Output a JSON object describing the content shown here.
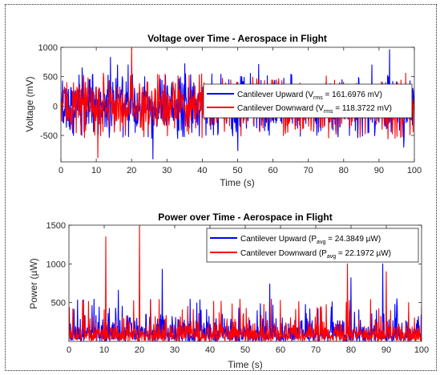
{
  "chart_data": [
    {
      "type": "line",
      "title": "Voltage over Time - Aerospace in Flight",
      "xlabel": "Time (s)",
      "ylabel": "Voltage (mV)",
      "xlim": [
        0,
        100
      ],
      "ylim": [
        -950,
        1000
      ],
      "xticks": [
        "0",
        "10",
        "20",
        "30",
        "40",
        "50",
        "60",
        "70",
        "80",
        "90",
        "100"
      ],
      "yticks": [
        "1000",
        "500",
        "0",
        "-500"
      ],
      "grid": false,
      "legend_position": "right",
      "series": [
        {
          "name": "Cantilever Upward",
          "legend_prefix": "Cantilever Upward (V",
          "legend_sub": "rms",
          "legend_suffix": " = 161.6976 mV)",
          "color": "#0000ff",
          "rms": 161.6976,
          "peaks": [
            [
              6,
              650
            ],
            [
              14,
              830
            ],
            [
              16,
              700
            ],
            [
              19,
              700
            ],
            [
              26,
              -900
            ],
            [
              35,
              720
            ],
            [
              50,
              -760
            ],
            [
              56,
              710
            ],
            [
              88,
              700
            ],
            [
              93,
              960
            ],
            [
              97,
              -700
            ]
          ]
        },
        {
          "name": "Cantilever Downward",
          "legend_prefix": "Cantilever Downward (V",
          "legend_sub": "rms",
          "legend_suffix": " = 118.3722 mV)",
          "color": "#ff0000",
          "rms": 118.3722,
          "peaks": [
            [
              10.5,
              -880
            ],
            [
              20,
              1000
            ],
            [
              12,
              560
            ]
          ]
        }
      ]
    },
    {
      "type": "line",
      "title": "Power over Time - Aerospace in Flight",
      "xlabel": "Time (s)",
      "ylabel": "Power (µW)",
      "xlim": [
        0,
        100
      ],
      "ylim": [
        0,
        1500
      ],
      "xticks": [
        "0",
        "10",
        "20",
        "30",
        "40",
        "50",
        "60",
        "70",
        "80",
        "90",
        "100"
      ],
      "yticks": [
        "1500",
        "1000",
        "500"
      ],
      "grid": false,
      "legend_position": "top-right",
      "series": [
        {
          "name": "Cantilever Upward",
          "legend_prefix": "Cantilever Upward (P",
          "legend_sub": "avg",
          "legend_suffix": " = 24.3849 µW)",
          "color": "#0000ff",
          "avg": 24.3849,
          "peaks": [
            [
              26.5,
              930
            ],
            [
              14,
              660
            ],
            [
              57,
              740
            ],
            [
              80,
              820
            ],
            [
              89,
              1000
            ],
            [
              93,
              550
            ]
          ]
        },
        {
          "name": "Cantilever Downward",
          "legend_prefix": "Cantilever Downward (P",
          "legend_sub": "avg",
          "legend_suffix": " = 22.1972 µW)",
          "color": "#ff0000",
          "avg": 22.1972,
          "peaks": [
            [
              10.5,
              1350
            ],
            [
              20,
              1490
            ],
            [
              79,
              1000
            ],
            [
              90,
              900
            ],
            [
              60,
              530
            ]
          ]
        }
      ]
    }
  ]
}
